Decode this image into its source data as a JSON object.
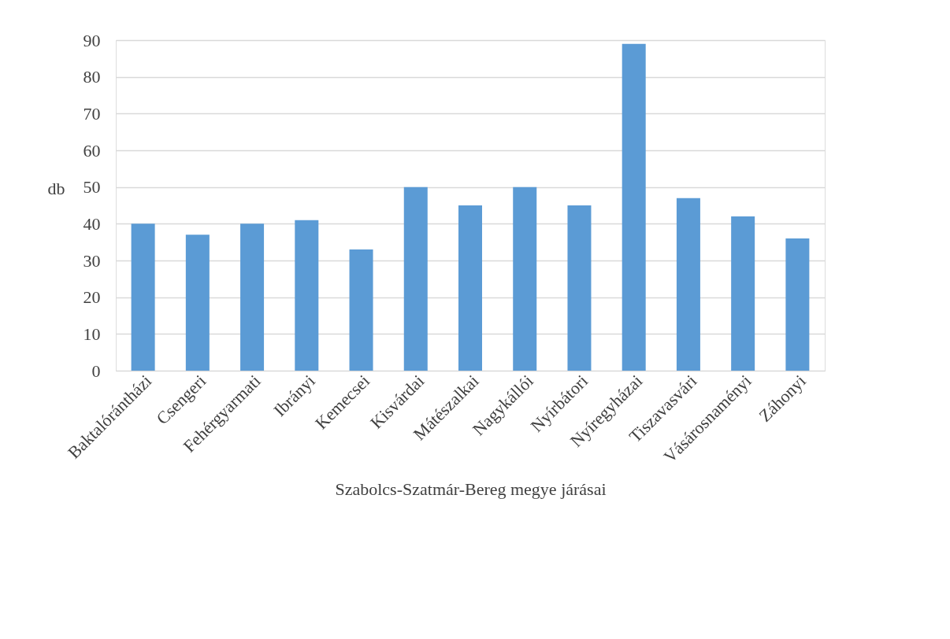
{
  "chart_data": {
    "type": "bar",
    "xlabel": "Szabolcs-Szatmár-Bereg megye járásai",
    "ylabel": "db",
    "categories": [
      "Baktalórántházi",
      "Csengeri",
      "Fehérgyarmati",
      "Ibrányi",
      "Kemecsei",
      "Kisvárdai",
      "Mátészalkai",
      "Nagykállói",
      "Nyírbátori",
      "Nyíregyházai",
      "Tiszavasvári",
      "Vásárosnaményi",
      "Záhonyi"
    ],
    "values": [
      40,
      37,
      40,
      41,
      33,
      50,
      45,
      50,
      45,
      89,
      47,
      42,
      36
    ],
    "color": "#5b9bd5",
    "ylim": [
      0,
      90
    ],
    "yticks": [
      0,
      10,
      20,
      30,
      40,
      50,
      60,
      70,
      80,
      90
    ],
    "grid": "y"
  }
}
